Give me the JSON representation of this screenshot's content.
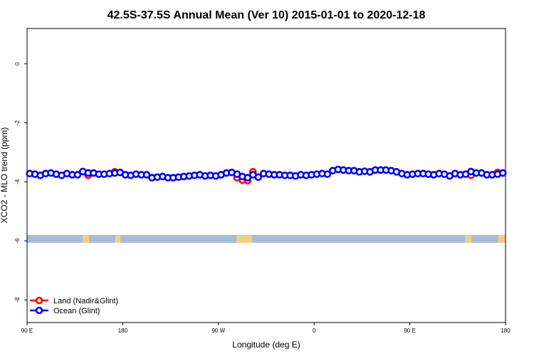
{
  "chart_data": {
    "type": "scatter",
    "title": "42.5S-37.5S Annual Mean (Ver 10)   2015-01-01 to 2020-12-18",
    "x_label": "Longitude (deg E)",
    "y_label": "XCO2 - MLO trend (ppm)",
    "xlim": [
      90,
      540
    ],
    "ylim": [
      -8.77,
      1.2
    ],
    "xticks": [
      {
        "value": 90,
        "label": "90 E"
      },
      180,
      {
        "value": 270,
        "label": "90 W"
      },
      {
        "value": 360,
        "label": "0"
      },
      {
        "value": 450,
        "label": "90 E"
      },
      {
        "value": 540,
        "label": "180"
      }
    ],
    "yticks": [
      0,
      -2,
      -4,
      -6,
      -8
    ],
    "legend_position": "bottom-left",
    "x": [
      92.5,
      97.5,
      102.5,
      107.5,
      112.5,
      117.5,
      122.5,
      127.5,
      132.5,
      137.5,
      142.5,
      147.5,
      152.5,
      157.5,
      162.5,
      167.5,
      172.5,
      177.5,
      182.5,
      187.5,
      192.5,
      197.5,
      202.5,
      207.5,
      212.5,
      217.5,
      222.5,
      227.5,
      232.5,
      237.5,
      242.5,
      247.5,
      252.5,
      257.5,
      262.5,
      267.5,
      272.5,
      277.5,
      282.5,
      287.5,
      292.5,
      297.5,
      302.5,
      307.5,
      312.5,
      317.5,
      322.5,
      327.5,
      332.5,
      337.5,
      342.5,
      347.5,
      352.5,
      357.5,
      362.5,
      367.5,
      372.5,
      377.5,
      382.5,
      387.5,
      392.5,
      397.5,
      402.5,
      407.5,
      412.5,
      417.5,
      422.5,
      427.5,
      432.5,
      437.5,
      442.5,
      447.5,
      452.5,
      457.5,
      462.5,
      467.5,
      472.5,
      477.5,
      482.5,
      487.5,
      492.5,
      497.5,
      502.5,
      507.5,
      512.5,
      517.5,
      522.5,
      527.5,
      532.5,
      537.5
    ],
    "series": [
      {
        "name": "Land (Nadir&Glint)",
        "color": "#ff0000",
        "values": [
          null,
          null,
          null,
          null,
          null,
          null,
          null,
          null,
          null,
          null,
          null,
          -3.78,
          null,
          null,
          null,
          null,
          -3.66,
          null,
          null,
          null,
          null,
          null,
          null,
          null,
          null,
          null,
          null,
          null,
          null,
          null,
          null,
          null,
          null,
          null,
          null,
          null,
          null,
          null,
          null,
          -3.86,
          -3.94,
          -3.96,
          -3.66,
          null,
          null,
          null,
          null,
          null,
          null,
          null,
          null,
          null,
          null,
          null,
          null,
          null,
          null,
          null,
          null,
          null,
          null,
          null,
          null,
          null,
          null,
          null,
          null,
          null,
          null,
          null,
          null,
          null,
          null,
          null,
          null,
          null,
          null,
          null,
          null,
          null,
          null,
          null,
          null,
          -3.78,
          null,
          null,
          null,
          null,
          -3.68,
          null
        ]
      },
      {
        "name": "Ocean (Glint)",
        "color": "#0000ff",
        "values": [
          -3.72,
          -3.74,
          -3.78,
          -3.72,
          -3.7,
          -3.74,
          -3.78,
          -3.72,
          -3.76,
          -3.76,
          -3.65,
          -3.7,
          -3.7,
          -3.74,
          -3.74,
          -3.72,
          -3.7,
          -3.68,
          -3.76,
          -3.78,
          -3.74,
          -3.76,
          -3.76,
          -3.86,
          -3.84,
          -3.82,
          -3.86,
          -3.86,
          -3.84,
          -3.82,
          -3.8,
          -3.78,
          -3.76,
          -3.8,
          -3.78,
          -3.8,
          -3.76,
          -3.7,
          -3.68,
          -3.74,
          -3.82,
          -3.86,
          -3.76,
          -3.84,
          -3.72,
          -3.74,
          -3.76,
          -3.76,
          -3.78,
          -3.78,
          -3.8,
          -3.76,
          -3.78,
          -3.76,
          -3.74,
          -3.72,
          -3.74,
          -3.62,
          -3.58,
          -3.6,
          -3.62,
          -3.62,
          -3.66,
          -3.64,
          -3.66,
          -3.6,
          -3.6,
          -3.6,
          -3.62,
          -3.66,
          -3.72,
          -3.76,
          -3.74,
          -3.72,
          -3.72,
          -3.74,
          -3.76,
          -3.72,
          -3.74,
          -3.8,
          -3.72,
          -3.76,
          -3.74,
          -3.65,
          -3.7,
          -3.7,
          -3.76,
          -3.76,
          -3.74,
          -3.7
        ]
      }
    ]
  }
}
